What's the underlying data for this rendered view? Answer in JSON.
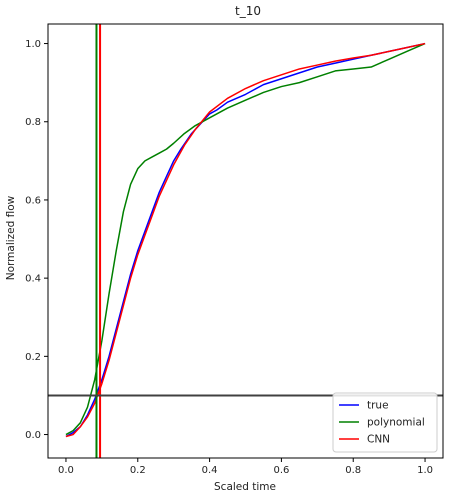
{
  "chart_data": {
    "type": "line",
    "title": "t_10",
    "xlabel": "Scaled time",
    "ylabel": "Normalized flow",
    "xlim": [
      -0.05,
      1.05
    ],
    "ylim": [
      -0.06,
      1.05
    ],
    "xticks": [
      0.0,
      0.2,
      0.4,
      0.6,
      0.8,
      1.0
    ],
    "xtick_labels": [
      "0.0",
      "0.2",
      "0.4",
      "0.6",
      "0.8",
      "1.0"
    ],
    "yticks": [
      0.0,
      0.2,
      0.4,
      0.6,
      0.8,
      1.0
    ],
    "ytick_labels": [
      "0.0",
      "0.2",
      "0.4",
      "0.6",
      "0.8",
      "1.0"
    ],
    "grid": false,
    "legend_position": "lower-right",
    "series": [
      {
        "name": "true",
        "color": "#0000ff",
        "x": [
          0.0,
          0.02,
          0.04,
          0.06,
          0.08,
          0.1,
          0.12,
          0.14,
          0.16,
          0.18,
          0.2,
          0.22,
          0.24,
          0.26,
          0.28,
          0.3,
          0.32,
          0.35,
          0.38,
          0.4,
          0.42,
          0.45,
          0.5,
          0.55,
          0.6,
          0.65,
          0.7,
          0.75,
          0.8,
          0.85,
          0.9,
          0.95,
          1.0
        ],
        "y": [
          -0.005,
          0.005,
          0.02,
          0.05,
          0.09,
          0.14,
          0.2,
          0.27,
          0.34,
          0.41,
          0.47,
          0.52,
          0.57,
          0.62,
          0.66,
          0.7,
          0.73,
          0.77,
          0.8,
          0.82,
          0.83,
          0.85,
          0.87,
          0.895,
          0.91,
          0.925,
          0.94,
          0.95,
          0.96,
          0.97,
          0.98,
          0.99,
          1.0
        ]
      },
      {
        "name": "polynomial",
        "color": "#008000",
        "x": [
          0.0,
          0.02,
          0.04,
          0.06,
          0.08,
          0.1,
          0.12,
          0.14,
          0.16,
          0.18,
          0.2,
          0.22,
          0.24,
          0.26,
          0.28,
          0.3,
          0.33,
          0.36,
          0.4,
          0.45,
          0.5,
          0.55,
          0.6,
          0.65,
          0.7,
          0.75,
          0.8,
          0.85,
          0.9,
          0.95,
          1.0
        ],
        "y": [
          0.0,
          0.01,
          0.03,
          0.07,
          0.14,
          0.24,
          0.36,
          0.47,
          0.57,
          0.64,
          0.68,
          0.7,
          0.71,
          0.72,
          0.73,
          0.745,
          0.77,
          0.79,
          0.81,
          0.835,
          0.855,
          0.875,
          0.89,
          0.9,
          0.915,
          0.93,
          0.935,
          0.94,
          0.96,
          0.98,
          1.0
        ]
      },
      {
        "name": "CNN",
        "color": "#ff0000",
        "x": [
          0.0,
          0.02,
          0.04,
          0.06,
          0.08,
          0.1,
          0.12,
          0.14,
          0.16,
          0.18,
          0.2,
          0.22,
          0.24,
          0.26,
          0.28,
          0.3,
          0.33,
          0.36,
          0.4,
          0.45,
          0.5,
          0.55,
          0.6,
          0.65,
          0.7,
          0.75,
          0.8,
          0.85,
          0.9,
          0.95,
          1.0
        ],
        "y": [
          -0.005,
          0.0,
          0.02,
          0.045,
          0.08,
          0.13,
          0.19,
          0.26,
          0.33,
          0.4,
          0.46,
          0.51,
          0.56,
          0.61,
          0.65,
          0.69,
          0.74,
          0.78,
          0.825,
          0.86,
          0.885,
          0.905,
          0.92,
          0.935,
          0.945,
          0.955,
          0.963,
          0.97,
          0.98,
          0.99,
          1.0
        ]
      }
    ],
    "vertical_lines": [
      {
        "x": 0.085,
        "color": "#008000"
      },
      {
        "x": 0.095,
        "color": "#ff0000"
      }
    ],
    "horizontal_lines": [
      {
        "y": 0.1,
        "color": "#404040"
      }
    ]
  }
}
